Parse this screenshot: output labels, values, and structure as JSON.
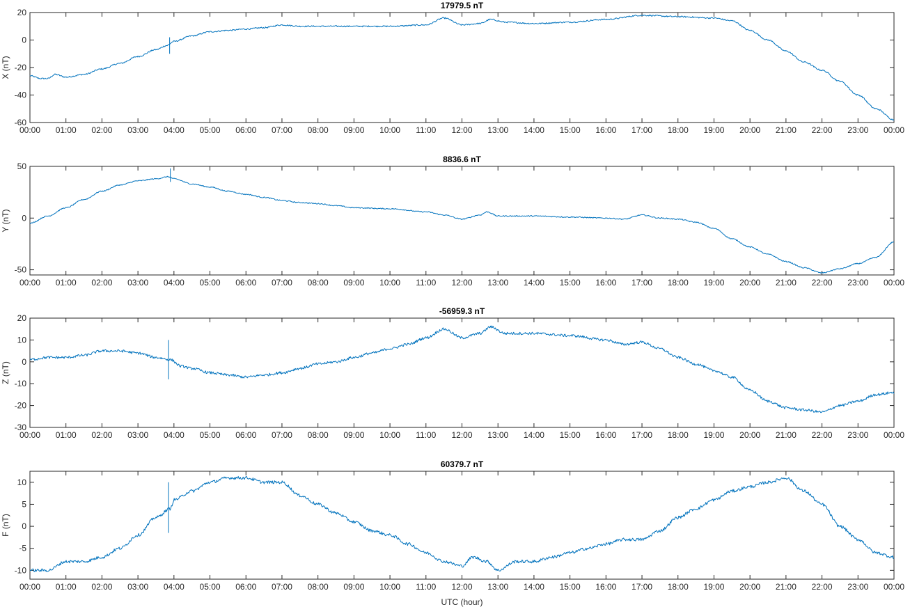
{
  "figure": {
    "xlabel": "UTC (hour)"
  },
  "colors": {
    "series": "#0072BD",
    "axes": "#262626"
  },
  "chart_data": [
    {
      "type": "line",
      "title": "17979.5 nT",
      "ylabel": "X (nT)",
      "xlabel": "",
      "xlim": [
        0,
        24
      ],
      "ylim": [
        -60,
        20
      ],
      "yticks": [
        -60,
        -40,
        -20,
        0,
        20
      ],
      "xticklabels": [
        "00:00",
        "01:00",
        "02:00",
        "03:00",
        "04:00",
        "05:00",
        "06:00",
        "07:00",
        "08:00",
        "09:00",
        "10:00",
        "11:00",
        "12:00",
        "13:00",
        "14:00",
        "15:00",
        "16:00",
        "17:00",
        "18:00",
        "19:00",
        "20:00",
        "21:00",
        "22:00",
        "23:00",
        "00:00"
      ],
      "grid": false,
      "noise": 0.5,
      "spikes": [
        {
          "x": 3.88,
          "min": -10,
          "max": 2
        }
      ],
      "series": [
        {
          "x": [
            0,
            0.3,
            0.5,
            0.7,
            1.0,
            1.5,
            2.0,
            2.5,
            3.0,
            3.5,
            3.8,
            4.0,
            4.5,
            5.0,
            5.5,
            6.0,
            6.5,
            7.0,
            7.5,
            8.0,
            9.0,
            10.0,
            11.0,
            11.5,
            12.0,
            12.5,
            12.8,
            13.2,
            14.0,
            15.0,
            16.0,
            17.0,
            18.0,
            19.0,
            19.5,
            20.0,
            20.5,
            21.0,
            21.5,
            22.0,
            22.5,
            23.0,
            23.5,
            24.0
          ],
          "values": [
            -26,
            -28,
            -28,
            -25,
            -27,
            -25,
            -21,
            -17,
            -12,
            -7,
            -4,
            -1,
            3,
            6,
            7,
            8,
            9,
            11,
            10,
            10,
            10,
            10,
            11,
            16,
            11,
            12,
            15,
            13,
            12,
            13,
            15,
            18,
            17,
            16,
            14,
            7,
            0,
            -8,
            -16,
            -22,
            -30,
            -40,
            -50,
            -58
          ]
        }
      ]
    },
    {
      "type": "line",
      "title": "8836.6 nT",
      "ylabel": "Y (nT)",
      "xlabel": "",
      "xlim": [
        0,
        24
      ],
      "ylim": [
        -55,
        50
      ],
      "yticks": [
        -50,
        0,
        50
      ],
      "xticklabels": [
        "00:00",
        "01:00",
        "02:00",
        "03:00",
        "04:00",
        "05:00",
        "06:00",
        "07:00",
        "08:00",
        "09:00",
        "10:00",
        "11:00",
        "12:00",
        "13:00",
        "14:00",
        "15:00",
        "16:00",
        "17:00",
        "18:00",
        "19:00",
        "20:00",
        "21:00",
        "22:00",
        "23:00",
        "00:00"
      ],
      "grid": false,
      "noise": 0.5,
      "spikes": [
        {
          "x": 3.9,
          "min": 35,
          "max": 48
        }
      ],
      "series": [
        {
          "x": [
            0,
            0.5,
            1.0,
            1.5,
            2.0,
            2.5,
            3.0,
            3.5,
            3.85,
            4.0,
            4.5,
            5.0,
            5.5,
            6.0,
            6.5,
            7.0,
            7.5,
            8.0,
            8.5,
            9.0,
            10.0,
            11.0,
            11.5,
            12.0,
            12.5,
            12.7,
            13.0,
            13.5,
            14.0,
            15.0,
            16.0,
            16.5,
            17.0,
            17.5,
            18.0,
            18.5,
            19.0,
            19.5,
            20.0,
            20.5,
            21.0,
            21.5,
            22.0,
            22.5,
            23.0,
            23.5,
            24.0
          ],
          "values": [
            -5,
            2,
            10,
            18,
            26,
            32,
            36,
            38,
            40,
            38,
            33,
            30,
            26,
            23,
            20,
            17,
            15,
            14,
            12,
            10,
            9,
            6,
            3,
            -1,
            3,
            6,
            2,
            2,
            2,
            1,
            0,
            -1,
            3,
            0,
            -1,
            -4,
            -10,
            -20,
            -28,
            -35,
            -42,
            -48,
            -53,
            -49,
            -44,
            -38,
            -23
          ]
        }
      ]
    },
    {
      "type": "line",
      "title": "-56959.3 nT",
      "ylabel": "Z (nT)",
      "xlabel": "",
      "xlim": [
        0,
        24
      ],
      "ylim": [
        -30,
        20
      ],
      "yticks": [
        -30,
        -20,
        -10,
        0,
        10,
        20
      ],
      "xticklabels": [
        "00:00",
        "01:00",
        "02:00",
        "03:00",
        "04:00",
        "05:00",
        "06:00",
        "07:00",
        "08:00",
        "09:00",
        "10:00",
        "11:00",
        "12:00",
        "13:00",
        "14:00",
        "15:00",
        "16:00",
        "17:00",
        "18:00",
        "19:00",
        "20:00",
        "21:00",
        "22:00",
        "23:00",
        "00:00"
      ],
      "grid": false,
      "noise": 0.6,
      "spikes": [
        {
          "x": 3.85,
          "min": -8,
          "max": 10
        }
      ],
      "series": [
        {
          "x": [
            0,
            0.5,
            1.0,
            1.5,
            2.0,
            2.5,
            3.0,
            3.5,
            3.9,
            4.2,
            4.5,
            5.0,
            5.5,
            6.0,
            6.5,
            7.0,
            7.5,
            8.0,
            8.5,
            9.0,
            9.5,
            10.0,
            10.5,
            11.0,
            11.5,
            12.0,
            12.5,
            12.8,
            13.2,
            14.0,
            15.0,
            16.0,
            16.5,
            17.0,
            17.5,
            18.0,
            18.5,
            19.0,
            19.5,
            20.0,
            20.5,
            21.0,
            21.5,
            22.0,
            22.5,
            23.0,
            23.5,
            24.0
          ],
          "values": [
            1,
            2,
            2,
            3,
            5,
            5,
            4,
            2,
            1,
            -2,
            -3,
            -5,
            -6,
            -7,
            -6,
            -5,
            -3,
            -1,
            0,
            2,
            4,
            6,
            8,
            11,
            15,
            11,
            13,
            16,
            13,
            13,
            12,
            10,
            8,
            9,
            6,
            2,
            -1,
            -4,
            -7,
            -13,
            -18,
            -21,
            -22,
            -23,
            -20,
            -18,
            -15,
            -14
          ]
        }
      ]
    },
    {
      "type": "line",
      "title": "60379.7 nT",
      "ylabel": "F (nT)",
      "xlabel": "UTC (hour)",
      "xlim": [
        0,
        24
      ],
      "ylim": [
        -12,
        12.5
      ],
      "yticks": [
        -10,
        -5,
        0,
        5,
        10
      ],
      "xticklabels": [
        "00:00",
        "01:00",
        "02:00",
        "03:00",
        "04:00",
        "05:00",
        "06:00",
        "07:00",
        "08:00",
        "09:00",
        "10:00",
        "11:00",
        "12:00",
        "13:00",
        "14:00",
        "15:00",
        "16:00",
        "17:00",
        "18:00",
        "19:00",
        "20:00",
        "21:00",
        "22:00",
        "23:00",
        "00:00"
      ],
      "grid": false,
      "noise": 0.35,
      "spikes": [
        {
          "x": 3.85,
          "min": -1.5,
          "max": 10
        }
      ],
      "series": [
        {
          "x": [
            0,
            0.5,
            1.0,
            1.5,
            2.0,
            2.5,
            3.0,
            3.5,
            3.9,
            4.0,
            4.5,
            5.0,
            5.5,
            6.0,
            6.5,
            7.0,
            7.5,
            8.0,
            8.5,
            9.0,
            9.5,
            10.0,
            10.5,
            11.0,
            11.5,
            12.0,
            12.3,
            12.7,
            13.0,
            13.5,
            14.0,
            14.5,
            15.0,
            15.5,
            16.0,
            16.5,
            17.0,
            17.5,
            18.0,
            18.5,
            19.0,
            19.5,
            20.0,
            20.5,
            21.0,
            21.5,
            22.0,
            22.5,
            23.0,
            23.5,
            24.0
          ],
          "values": [
            -10,
            -10,
            -8,
            -8,
            -7,
            -5,
            -2,
            2,
            4,
            6,
            8,
            10,
            11,
            11,
            10,
            10,
            7,
            5,
            3,
            1,
            -1,
            -2,
            -4,
            -6,
            -8,
            -9,
            -7,
            -8,
            -10,
            -8,
            -8,
            -7,
            -6,
            -5,
            -4,
            -3,
            -3,
            -1,
            2,
            4,
            6,
            8,
            9,
            10,
            11,
            8,
            5,
            0,
            -3,
            -6,
            -7
          ]
        }
      ]
    }
  ]
}
